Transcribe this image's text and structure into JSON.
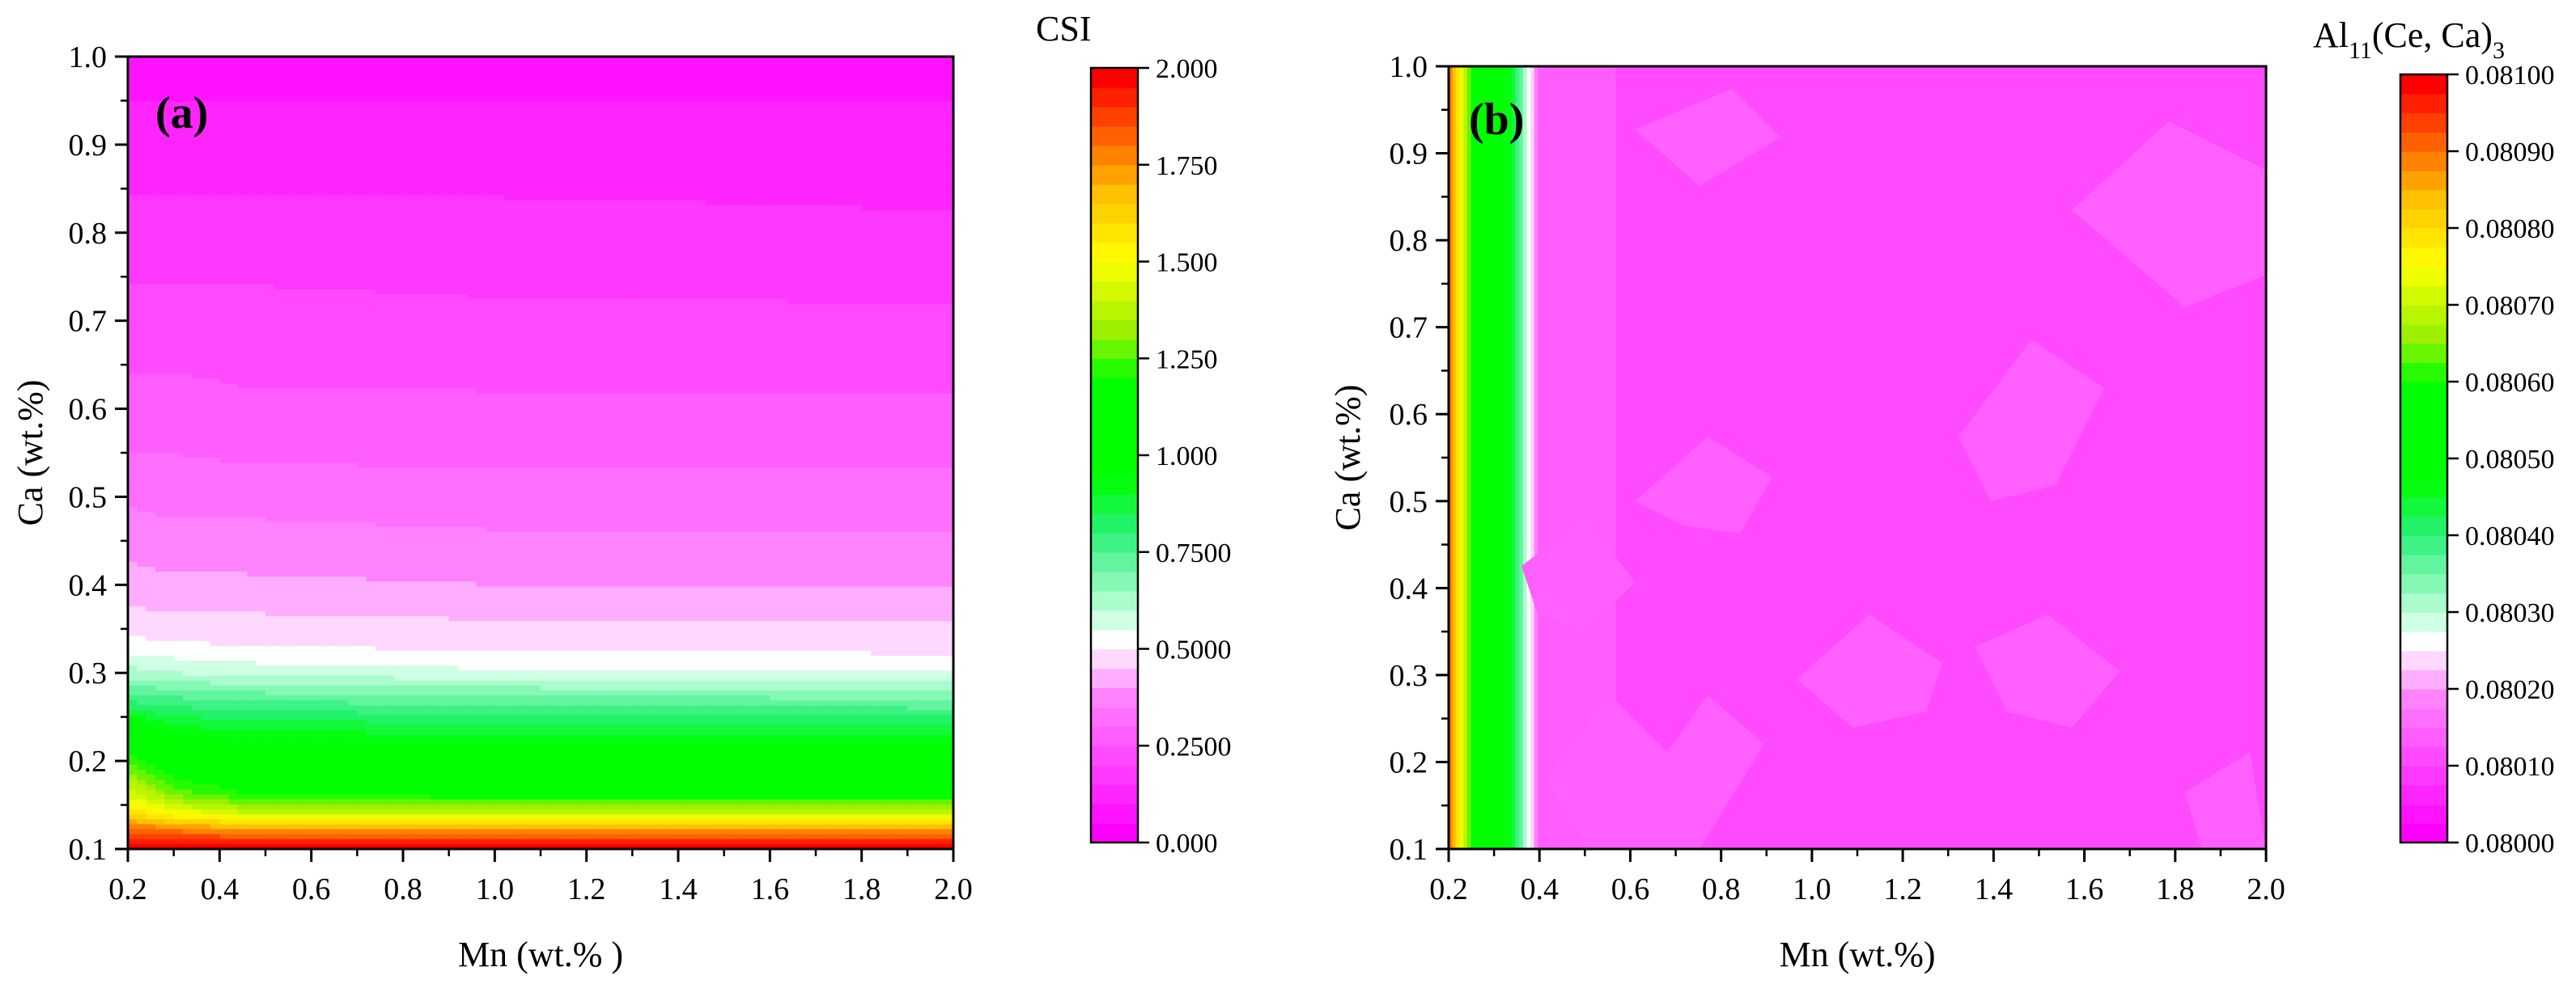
{
  "chart_data": [
    {
      "type": "heatmap",
      "panel_label": "(a)",
      "xlabel": "Mn (wt.% )",
      "ylabel": "Ca (wt.%)",
      "xlim": [
        0.2,
        2.0
      ],
      "ylim": [
        0.1,
        1.0
      ],
      "xticks": [
        "0.2",
        "0.4",
        "0.6",
        "0.8",
        "1.0",
        "1.2",
        "1.4",
        "1.6",
        "1.8",
        "2.0"
      ],
      "yticks": [
        "0.1",
        "0.2",
        "0.3",
        "0.4",
        "0.5",
        "0.6",
        "0.7",
        "0.8",
        "0.9",
        "1.0"
      ],
      "x": [
        0.2,
        0.3,
        0.45,
        1.0,
        2.0
      ],
      "y": [
        0.1,
        0.12,
        0.14,
        0.16,
        0.18,
        0.2,
        0.23,
        0.27,
        0.3,
        0.33,
        0.36,
        0.4,
        0.45,
        0.5,
        0.55,
        0.6,
        0.7,
        0.8,
        0.9,
        1.0
      ],
      "z": [
        [
          2.0,
          2.0,
          2.0,
          2.0,
          2.0
        ],
        [
          1.85,
          1.8,
          1.78,
          1.78,
          1.78
        ],
        [
          1.6,
          1.5,
          1.42,
          1.4,
          1.4
        ],
        [
          1.45,
          1.3,
          1.22,
          1.18,
          1.18
        ],
        [
          1.35,
          1.2,
          1.12,
          1.1,
          1.1
        ],
        [
          1.25,
          1.1,
          1.05,
          1.02,
          1.02
        ],
        [
          1.05,
          0.95,
          0.92,
          0.9,
          0.9
        ],
        [
          0.78,
          0.76,
          0.74,
          0.72,
          0.7
        ],
        [
          0.62,
          0.6,
          0.58,
          0.56,
          0.55
        ],
        [
          0.52,
          0.51,
          0.5,
          0.49,
          0.48
        ],
        [
          0.47,
          0.46,
          0.46,
          0.45,
          0.45
        ],
        [
          0.42,
          0.41,
          0.41,
          0.4,
          0.4
        ],
        [
          0.38,
          0.37,
          0.37,
          0.36,
          0.36
        ],
        [
          0.34,
          0.33,
          0.33,
          0.32,
          0.32
        ],
        [
          0.3,
          0.3,
          0.29,
          0.29,
          0.29
        ],
        [
          0.27,
          0.27,
          0.26,
          0.26,
          0.26
        ],
        [
          0.22,
          0.22,
          0.22,
          0.21,
          0.21
        ],
        [
          0.17,
          0.17,
          0.17,
          0.17,
          0.16
        ],
        [
          0.12,
          0.12,
          0.12,
          0.12,
          0.12
        ],
        [
          0.08,
          0.08,
          0.08,
          0.08,
          0.08
        ]
      ],
      "colorbar": {
        "title": "CSI",
        "range": [
          0.0,
          2.0
        ],
        "levels": 40,
        "ticks": [
          "0.000",
          "0.2500",
          "0.5000",
          "0.7500",
          "1.000",
          "1.250",
          "1.500",
          "1.750",
          "2.000"
        ]
      }
    },
    {
      "type": "heatmap",
      "panel_label": "(b)",
      "xlabel": "Mn (wt.%)",
      "ylabel": "Ca (wt.%)",
      "xlim": [
        0.2,
        2.0
      ],
      "ylim": [
        0.1,
        1.0
      ],
      "xticks": [
        "0.2",
        "0.4",
        "0.6",
        "0.8",
        "1.0",
        "1.2",
        "1.4",
        "1.6",
        "1.8",
        "2.0"
      ],
      "yticks": [
        "0.1",
        "0.2",
        "0.3",
        "0.4",
        "0.5",
        "0.6",
        "0.7",
        "0.8",
        "0.9",
        "1.0"
      ],
      "x": [
        0.2,
        0.22,
        0.25,
        0.3,
        0.34,
        0.37,
        0.4,
        0.6,
        1.0,
        1.4,
        2.0
      ],
      "y": [
        0.1,
        0.55,
        1.0
      ],
      "z": [
        [
          0.0809,
          0.0808,
          0.0806,
          0.0805,
          0.08045,
          0.0803,
          0.08015,
          0.08012,
          0.08012,
          0.08012,
          0.08012
        ],
        [
          0.0809,
          0.0808,
          0.0806,
          0.0805,
          0.08045,
          0.0803,
          0.08015,
          0.08012,
          0.08012,
          0.08012,
          0.08012
        ],
        [
          0.0809,
          0.0808,
          0.0806,
          0.0805,
          0.08045,
          0.0803,
          0.08015,
          0.08012,
          0.08012,
          0.08012,
          0.08012
        ]
      ],
      "colorbar": {
        "title_main": "Al",
        "title_sub": "11",
        "title_rest": "(Ce, Ca)",
        "title_sub2": "3",
        "range": [
          0.08,
          0.081
        ],
        "levels": 40,
        "ticks": [
          "0.08000",
          "0.08010",
          "0.08020",
          "0.08030",
          "0.08040",
          "0.08050",
          "0.08060",
          "0.08070",
          "0.08080",
          "0.08090",
          "0.08100"
        ]
      }
    }
  ]
}
